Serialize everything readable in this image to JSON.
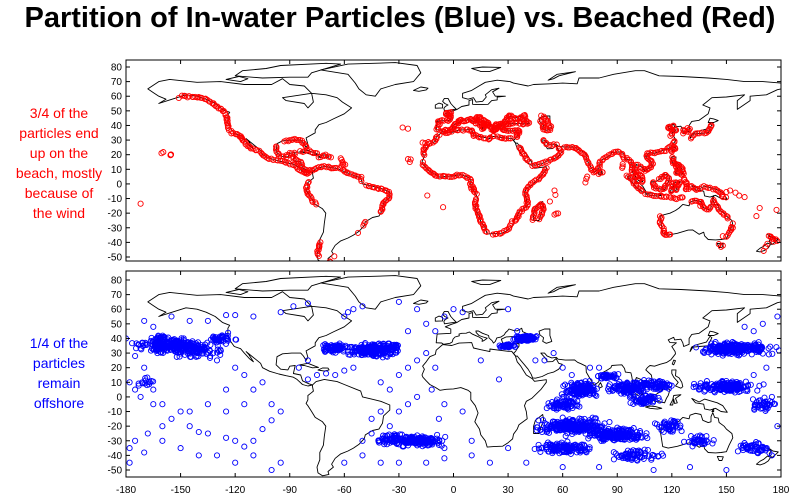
{
  "title": "Partition of In-water Particles (Blue) vs. Beached (Red)",
  "panels": [
    {
      "name": "beached",
      "color": "#ff0000",
      "annotation": [
        "3/4 of the",
        "particles end",
        "up on the",
        "beach, mostly",
        "because of",
        "the wind"
      ]
    },
    {
      "name": "in-water",
      "color": "#0000ff",
      "annotation": [
        "1/4 of the",
        "particles",
        "remain",
        "offshore"
      ]
    }
  ],
  "axes": {
    "x_ticks": [
      -180,
      -150,
      -120,
      -90,
      -60,
      -30,
      0,
      30,
      60,
      90,
      120,
      150,
      180
    ],
    "y_ticks": [
      80,
      70,
      60,
      50,
      40,
      30,
      20,
      10,
      0,
      -10,
      -20,
      -30,
      -40,
      -50
    ],
    "lon_range": [
      -180,
      180
    ],
    "lat_range": [
      -55,
      83
    ]
  },
  "map": {
    "projection": "equirectangular",
    "coastline_color": "#000000",
    "marker": "open-circle"
  }
}
